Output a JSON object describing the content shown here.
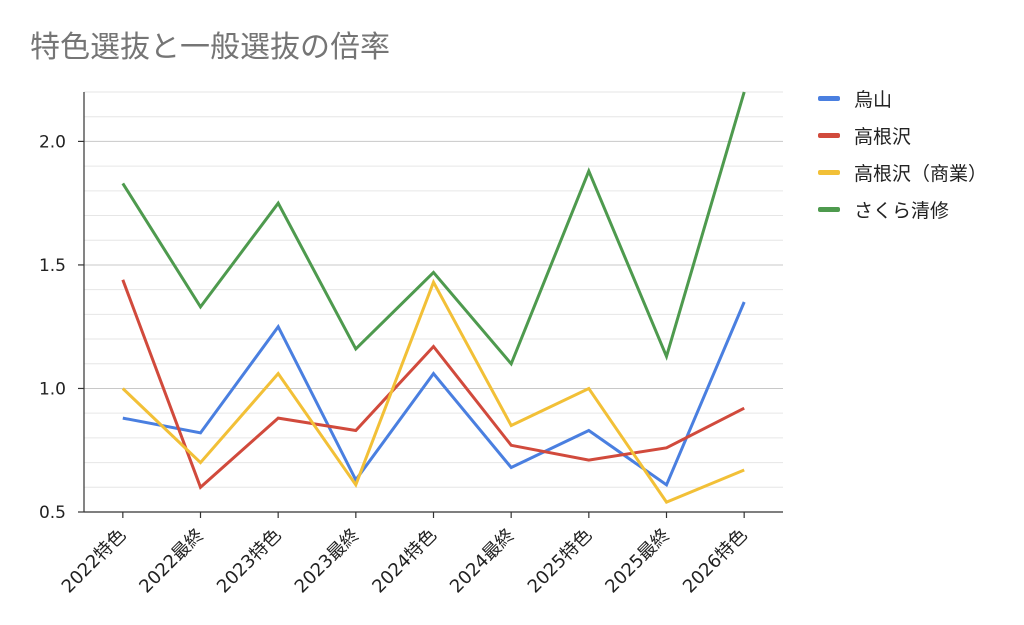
{
  "title": "特色選抜と一般選抜の倍率",
  "chart_data": {
    "type": "line",
    "title": "特色選抜と一般選抜の倍率",
    "categories": [
      "2022特色",
      "2022最終",
      "2023特色",
      "2023最終",
      "2024特色",
      "2024最終",
      "2025特色",
      "2025最終",
      "2026特色"
    ],
    "y_ticks": [
      "0.5",
      "1.0",
      "1.5",
      "2.0"
    ],
    "ylim": [
      0.5,
      2.2
    ],
    "grid": true,
    "legend_position": "right",
    "series": [
      {
        "name": "烏山",
        "color": "#4a7fe0",
        "values": [
          0.88,
          0.82,
          1.25,
          0.63,
          1.06,
          0.68,
          0.83,
          0.61,
          1.35
        ]
      },
      {
        "name": "高根沢",
        "color": "#d14a3c",
        "values": [
          1.44,
          0.6,
          0.88,
          0.83,
          1.17,
          0.77,
          0.71,
          0.76,
          0.92
        ]
      },
      {
        "name": "高根沢（商業）",
        "color": "#f2c037",
        "values": [
          1.0,
          0.7,
          1.06,
          0.61,
          1.43,
          0.85,
          1.0,
          0.54,
          0.67
        ]
      },
      {
        "name": "さくら清修",
        "color": "#4e9a4e",
        "values": [
          1.83,
          1.33,
          1.75,
          1.16,
          1.47,
          1.1,
          1.88,
          1.13,
          2.2
        ]
      }
    ]
  }
}
